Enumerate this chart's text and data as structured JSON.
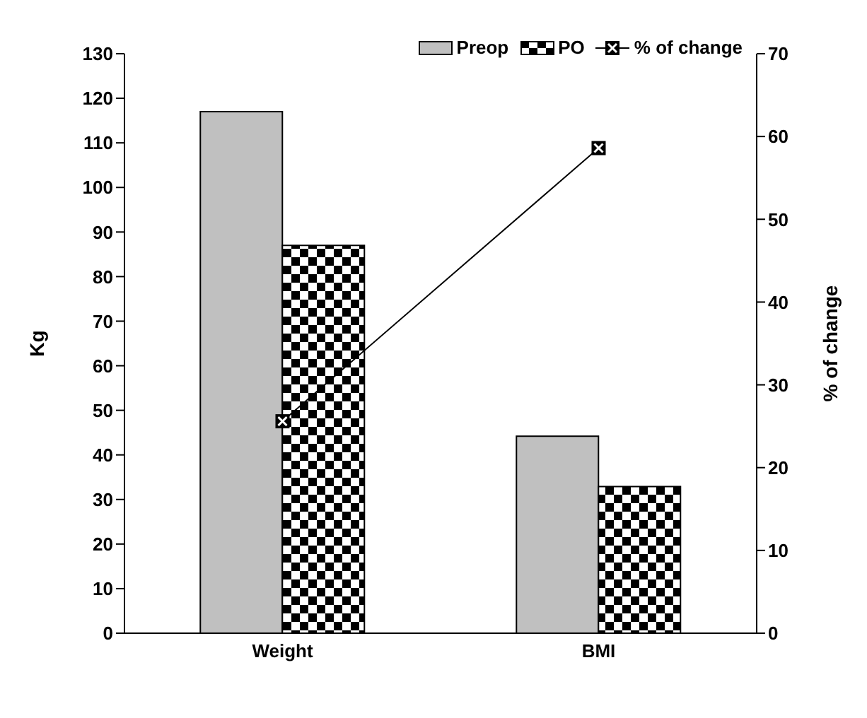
{
  "chart_data": {
    "type": "bar",
    "categories": [
      "Weight",
      "BMI"
    ],
    "ylabel": "Kg",
    "y2label": "% of change",
    "series": [
      {
        "name": "Preop",
        "color": "#c0c0c0",
        "values": [
          117,
          44.2
        ]
      },
      {
        "name": "PO",
        "color": "#000000",
        "values": [
          87,
          32.9
        ]
      },
      {
        "name": "% of change",
        "type": "line",
        "axis": "y2",
        "color": "#000000",
        "values": [
          25.6,
          58.6
        ],
        "marker": "square"
      }
    ],
    "ylim": [
      0,
      130
    ],
    "yticks": [
      0,
      10,
      20,
      30,
      40,
      50,
      60,
      70,
      80,
      90,
      100,
      110,
      120,
      130
    ],
    "y2lim": [
      0,
      70
    ],
    "y2ticks": [
      0,
      10,
      20,
      30,
      40,
      50,
      60,
      70
    ],
    "grid": false,
    "legend": "top right"
  }
}
